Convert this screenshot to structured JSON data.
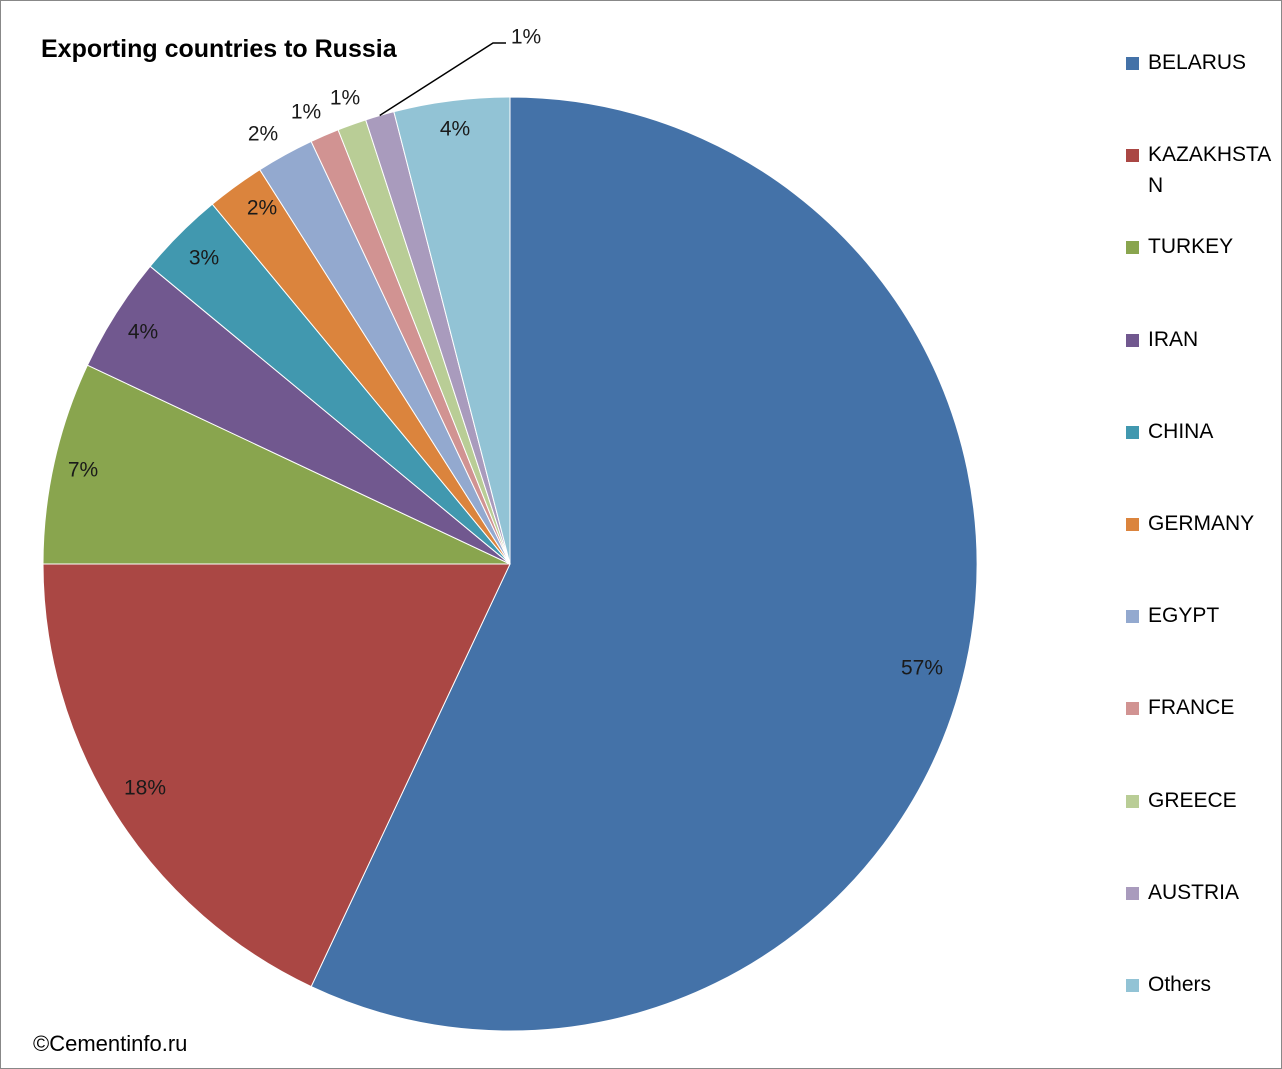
{
  "chart_data": {
    "type": "pie",
    "title": "Exporting countries to Russia",
    "categories": [
      "BELARUS",
      "KAZAKHSTAN",
      "TURKEY",
      "IRAN",
      "CHINA",
      "GERMANY",
      "EGYPT",
      "FRANCE",
      "GREECE",
      "AUSTRIA",
      "Others"
    ],
    "values": [
      57,
      18,
      7,
      4,
      3,
      2,
      2,
      1,
      1,
      1,
      4
    ],
    "colors": [
      "#4472A8",
      "#AA4744",
      "#89A54E",
      "#71588F",
      "#4198AF",
      "#DB843D",
      "#93A9CF",
      "#D19392",
      "#B9CD96",
      "#A99BBD",
      "#92C3D5"
    ],
    "data_labels": [
      "57%",
      "18%",
      "7%",
      "4%",
      "3%",
      "2%",
      "2%",
      "1%",
      "1%",
      "1%",
      "4%"
    ],
    "legend_position": "right"
  },
  "copyright": "©Cementinfo.ru"
}
